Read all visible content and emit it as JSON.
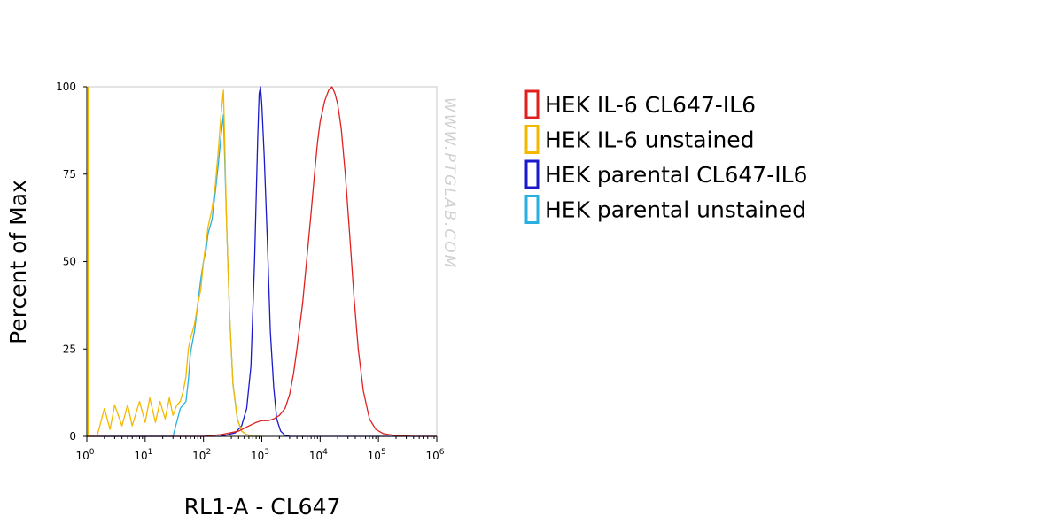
{
  "watermark": "WWW.PTGLAB.COM",
  "chart_data": {
    "type": "line",
    "xlabel": "RL1-A - CL647",
    "ylabel": "Percent of Max",
    "x_scale": "log",
    "xlim": [
      1,
      1000000
    ],
    "ylim": [
      0,
      100
    ],
    "x_ticks": [
      1,
      10,
      100,
      1000,
      10000,
      100000,
      1000000
    ],
    "x_tick_base": "10",
    "x_tick_exponents": [
      "0",
      "1",
      "2",
      "3",
      "4",
      "5",
      "6"
    ],
    "y_ticks": [
      "0",
      "25",
      "50",
      "75",
      "100"
    ],
    "legend_position": "right",
    "series": [
      {
        "name": "HEK IL-6 CL647-IL6",
        "color": "#e02020",
        "x": [
          1,
          100,
          200,
          400,
          600,
          800,
          1000,
          1300,
          1600,
          2000,
          2500,
          3000,
          3500,
          4000,
          5000,
          6000,
          7000,
          8000,
          9000,
          10000,
          12000,
          14000,
          16000,
          18000,
          20000,
          23000,
          27000,
          32000,
          38000,
          45000,
          55000,
          70000,
          90000,
          120000,
          200000,
          400000,
          1000000
        ],
        "y": [
          0,
          0,
          0.5,
          1.5,
          3,
          4,
          4.5,
          4.5,
          5,
          6,
          8,
          12,
          18,
          25,
          38,
          52,
          64,
          75,
          84,
          90,
          96,
          99,
          100,
          98,
          95,
          88,
          75,
          58,
          40,
          25,
          13,
          5,
          2,
          0.8,
          0.2,
          0,
          0
        ]
      },
      {
        "name": "HEK IL-6 unstained",
        "color": "#f5b800",
        "x": [
          1,
          1.5,
          2,
          2.5,
          3,
          4,
          5,
          6,
          8,
          10,
          12,
          15,
          18,
          22,
          26,
          30,
          35,
          40,
          45,
          50,
          55,
          60,
          70,
          80,
          90,
          100,
          110,
          120,
          140,
          160,
          180,
          200,
          220,
          250,
          280,
          320,
          380,
          450,
          550,
          700,
          1000
        ],
        "y": [
          0,
          0,
          8,
          2,
          9,
          3,
          9,
          3,
          10,
          4,
          11,
          4,
          10,
          5,
          11,
          6,
          9,
          10,
          13,
          17,
          25,
          28,
          32,
          38,
          42,
          50,
          55,
          60,
          65,
          72,
          82,
          92,
          99,
          60,
          35,
          15,
          5,
          1.5,
          0.5,
          0,
          0
        ]
      },
      {
        "name": "HEK parental CL647-IL6",
        "color": "#1a1acc",
        "x": [
          1,
          200,
          350,
          450,
          550,
          650,
          750,
          850,
          900,
          950,
          1000,
          1100,
          1250,
          1400,
          1600,
          1800,
          2100,
          2500,
          3000,
          1000000
        ],
        "y": [
          0,
          0,
          1,
          3,
          8,
          20,
          50,
          85,
          98,
          100,
          95,
          80,
          55,
          30,
          14,
          5,
          1.5,
          0.3,
          0,
          0
        ]
      },
      {
        "name": "HEK parental unstained",
        "color": "#29b0e0",
        "x": [
          1,
          30,
          40,
          50,
          55,
          60,
          70,
          80,
          90,
          100,
          110,
          120,
          140,
          160,
          180,
          200,
          220,
          250,
          280,
          320,
          380,
          450,
          550,
          700,
          1000
        ],
        "y": [
          0,
          0,
          8,
          10,
          16,
          24,
          30,
          38,
          45,
          50,
          53,
          58,
          62,
          70,
          78,
          86,
          92,
          60,
          35,
          15,
          5,
          1.5,
          0.5,
          0,
          0
        ]
      }
    ]
  }
}
